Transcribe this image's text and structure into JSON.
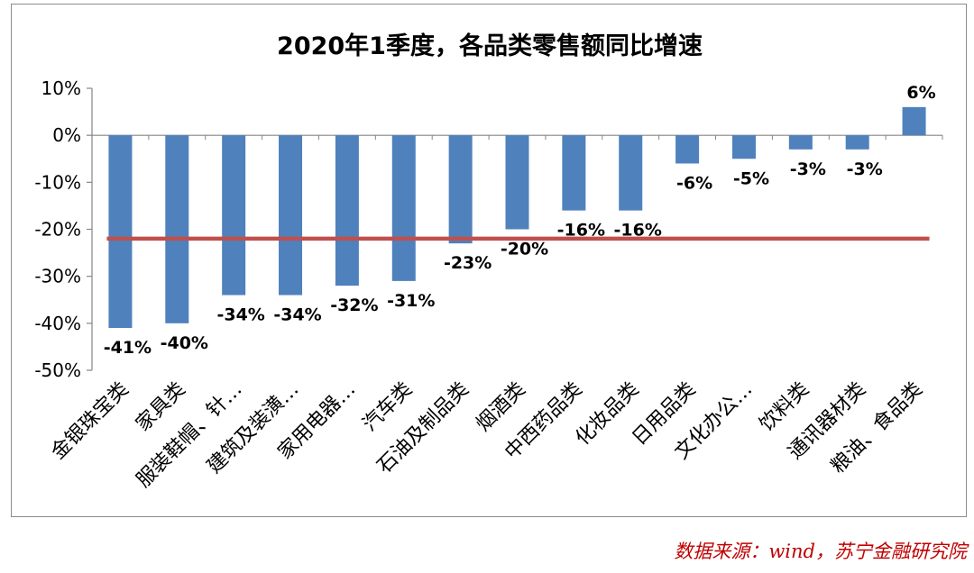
{
  "chart_data": {
    "type": "bar",
    "title": "2020年1季度，各品类零售额同比增速",
    "categories": [
      "金银珠宝类",
      "家具类",
      "服装鞋帽、针…",
      "建筑及装潢…",
      "家用电器…",
      "汽车类",
      "石油及制品类",
      "烟酒类",
      "中西药品类",
      "化妆品类",
      "日用品类",
      "文化办公…",
      "饮料类",
      "通讯器材类",
      "粮油、食品类"
    ],
    "values": [
      -41,
      -40,
      -34,
      -34,
      -32,
      -31,
      -23,
      -20,
      -16,
      -16,
      -6,
      -5,
      -3,
      -3,
      6
    ],
    "data_labels": [
      "-41%",
      "-40%",
      "-34%",
      "-34%",
      "-32%",
      "-31%",
      "-23%",
      "-20%",
      "-16%",
      "-16%",
      "-6%",
      "-5%",
      "-3%",
      "-3%",
      "6%"
    ],
    "y_ticks": [
      10,
      0,
      -10,
      -20,
      -30,
      -40,
      -50
    ],
    "y_tick_labels": [
      "10%",
      "0%",
      "-10%",
      "-20%",
      "-30%",
      "-40%",
      "-50%"
    ],
    "ylim": [
      -50,
      10
    ],
    "reference_line": -22,
    "grid": false,
    "xlabel": "",
    "ylabel": "",
    "colors": {
      "bar": "#4f81bd",
      "reference_line": "#c0504d"
    }
  },
  "source": "数据来源：wind，苏宁金融研究院"
}
